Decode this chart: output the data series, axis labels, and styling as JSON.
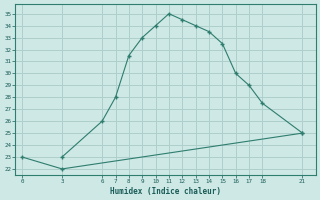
{
  "line1_x": [
    3,
    6,
    7,
    8,
    9,
    10,
    11,
    12,
    13,
    14,
    15,
    16,
    17,
    18,
    21
  ],
  "line1_y": [
    23,
    26,
    28,
    31.5,
    33,
    34,
    35,
    34.5,
    34,
    33.5,
    32.5,
    30,
    29,
    27.5,
    25
  ],
  "line2_x": [
    0,
    3,
    21
  ],
  "line2_y": [
    23,
    22,
    25
  ],
  "line_color": "#2e7d6e",
  "bg_color": "#cde8e5",
  "grid_color": "#aecfcc",
  "xlabel": "Humidex (Indice chaleur)",
  "xticks": [
    0,
    3,
    6,
    7,
    8,
    9,
    10,
    11,
    12,
    13,
    14,
    15,
    16,
    17,
    18,
    21
  ],
  "yticks": [
    22,
    23,
    24,
    25,
    26,
    27,
    28,
    29,
    30,
    31,
    32,
    33,
    34,
    35
  ],
  "xlim": [
    -0.5,
    22
  ],
  "ylim": [
    21.5,
    35.8
  ]
}
